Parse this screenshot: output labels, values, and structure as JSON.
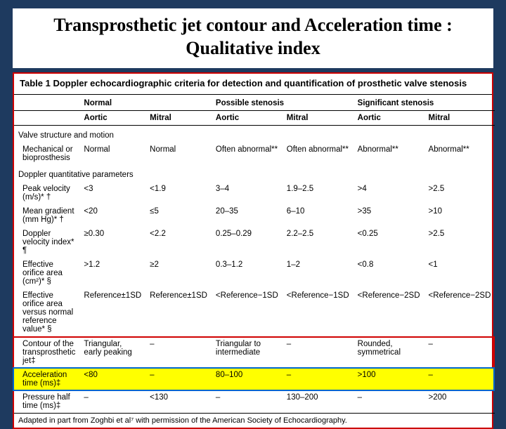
{
  "title": "Transprosthetic jet contour and Acceleration time : Qualitative index",
  "table": {
    "caption": "Table 1   Doppler echocardiographic criteria for detection and quantification of prosthetic valve stenosis",
    "group_headers": [
      "",
      "Normal",
      "Possible stenosis",
      "Significant stenosis"
    ],
    "sub_headers": [
      "",
      "Aortic",
      "Mitral",
      "Aortic",
      "Mitral",
      "Aortic",
      "Mitral"
    ],
    "section1": "Valve structure and motion",
    "row_mech": [
      "Mechanical or bioprosthesis",
      "Normal",
      "Normal",
      "Often abnormal**",
      "Often abnormal**",
      "Abnormal**",
      "Abnormal**"
    ],
    "section2": "Doppler quantitative parameters",
    "row_pv": [
      "Peak velocity (m/s)* †",
      "<3",
      "<1.9",
      "3–4",
      "1.9–2.5",
      ">4",
      ">2.5"
    ],
    "row_mg": [
      "Mean gradient (mm Hg)* †",
      "<20",
      "≤5",
      "20–35",
      "6–10",
      ">35",
      ">10"
    ],
    "row_dvi": [
      "Doppler velocity index* ¶",
      "≥0.30",
      "<2.2",
      "0.25–0.29",
      "2.2–2.5",
      "<0.25",
      ">2.5"
    ],
    "row_eoa": [
      "Effective orifice area (cm²)* §",
      ">1.2",
      "≥2",
      "0.3–1.2",
      "1–2",
      "<0.8",
      "<1"
    ],
    "row_eoa_ref": [
      "Effective orifice area versus normal reference value* §",
      "Reference±1SD",
      "Reference±1SD",
      "<Reference−1SD",
      "<Reference−1SD",
      "<Reference−2SD",
      "<Reference−2SD"
    ],
    "row_contour": [
      "Contour of the transprosthetic jet‡",
      "Triangular, early peaking",
      "–",
      "Triangular to intermediate",
      "–",
      "Rounded, symmetrical",
      "–"
    ],
    "row_accel": [
      "Acceleration time (ms)‡",
      "<80",
      "–",
      "80–100",
      "–",
      ">100",
      "–"
    ],
    "row_pht": [
      "Pressure half time (ms)‡",
      "–",
      "<130",
      "–",
      "130–200",
      "–",
      ">200"
    ],
    "footer": "Adapted in part from Zoghbi et al⁷ with permission of the American Society of Echocardiography."
  },
  "colors": {
    "slide_bg": "#1e3a5f",
    "accent_red": "#d00000",
    "accent_blue": "#0066cc",
    "highlight_yellow": "#ffff00"
  }
}
